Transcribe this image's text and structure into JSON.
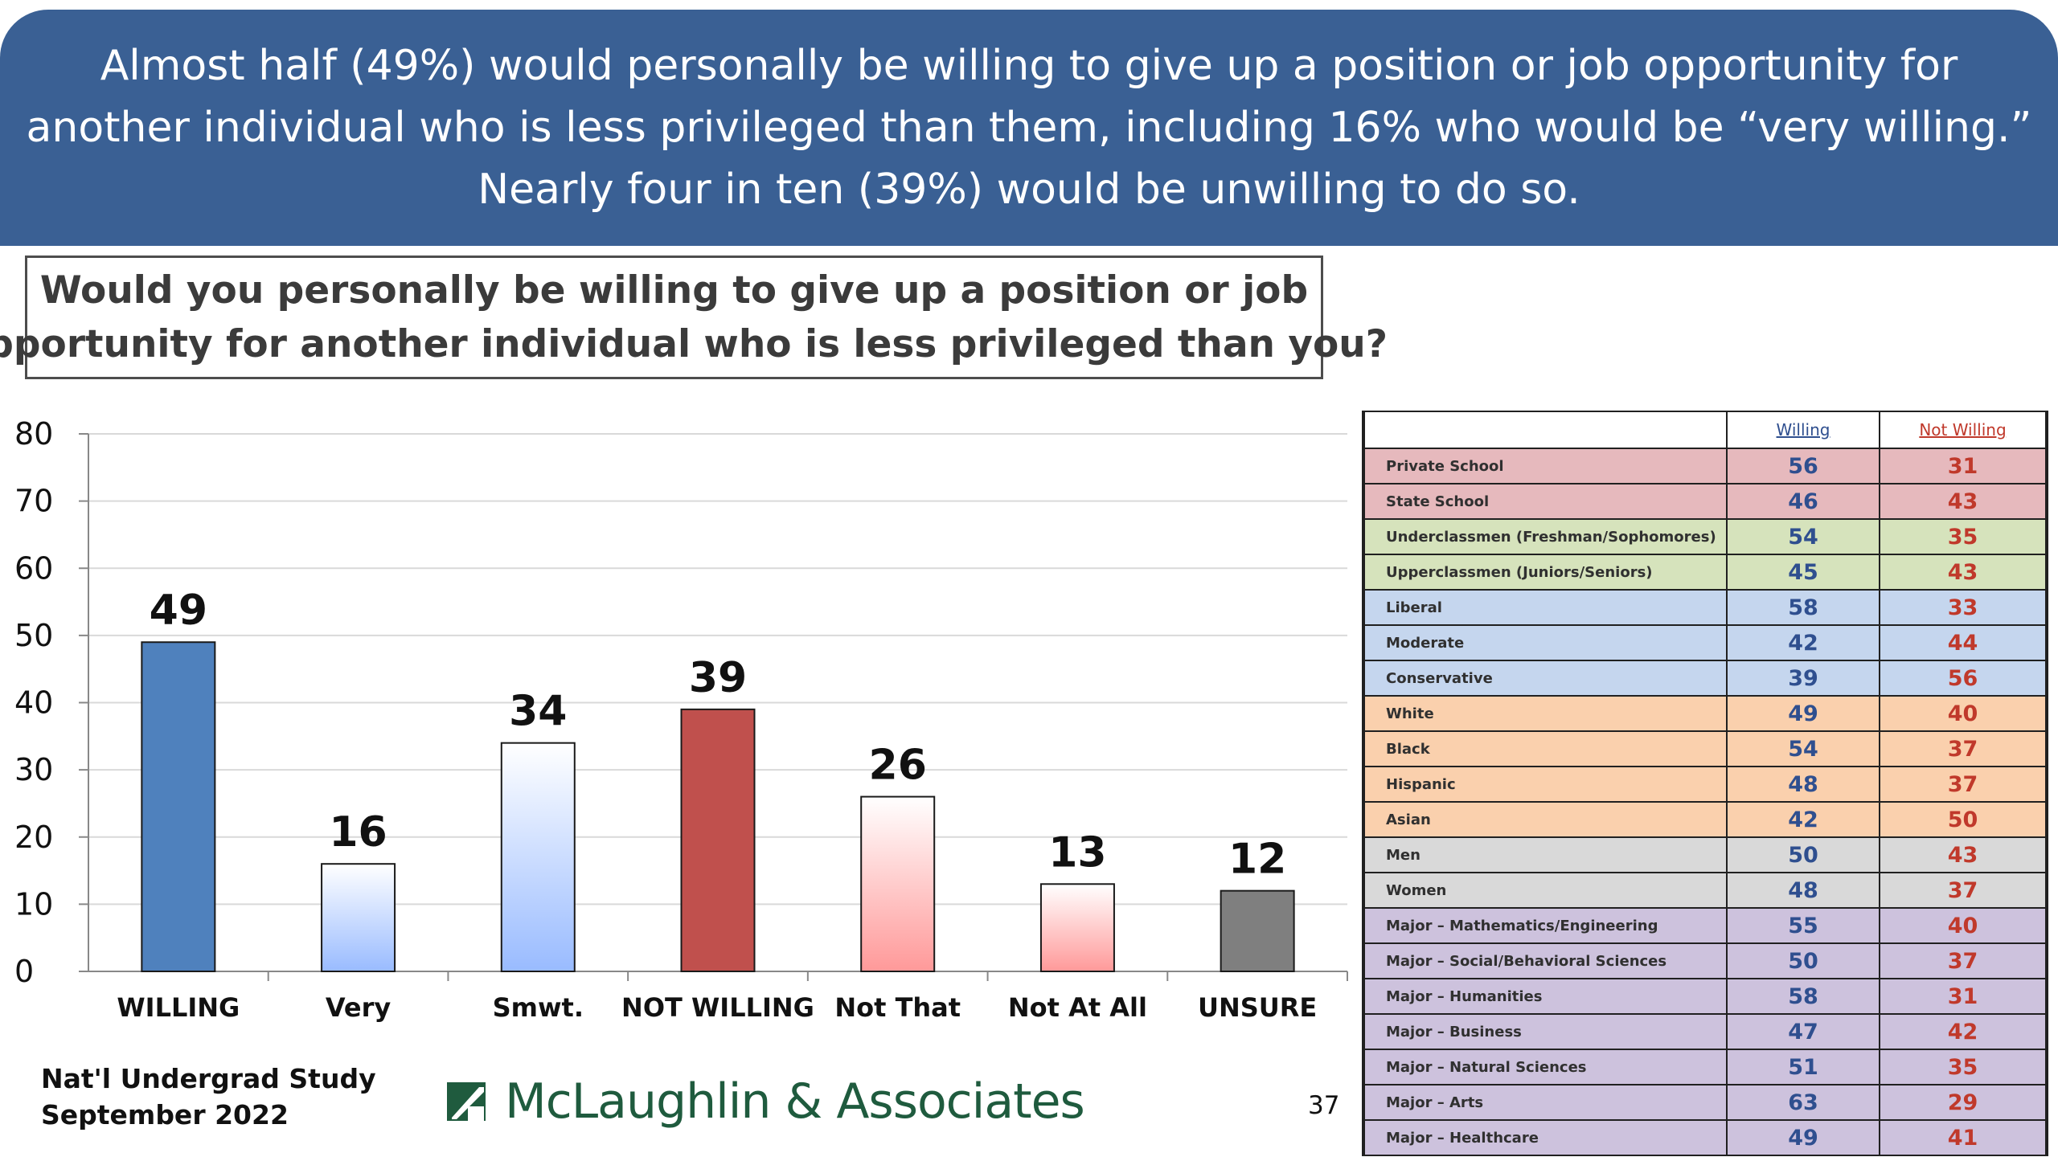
{
  "header": {
    "lines": [
      "Almost half (49%) would personally be willing to give up a position or job opportunity for",
      "another individual who is less privileged than them, including 16% who would be “very willing.”",
      "Nearly four in ten (39%) would be unwilling to do so."
    ]
  },
  "question": {
    "lines": [
      "Would you personally be willing to give up a position or job",
      "opportunity for another individual who is less privileged than you?"
    ]
  },
  "chart_data": {
    "type": "bar",
    "title": "",
    "xlabel": "",
    "ylabel": "",
    "categories": [
      "WILLING",
      "Very",
      "Smwt.",
      "NOT WILLING",
      "Not That",
      "Not At All",
      "UNSURE"
    ],
    "values": [
      49,
      16,
      34,
      39,
      26,
      13,
      12
    ],
    "data_labels": [
      "49",
      "16",
      "34",
      "39",
      "26",
      "13",
      "12"
    ],
    "ylim": [
      0,
      80
    ],
    "yticks": [
      0,
      10,
      20,
      30,
      40,
      50,
      60,
      70,
      80
    ],
    "grid": true,
    "bar_colors": [
      "#4f81bd",
      "gradient:#ffffff-#99bbff",
      "gradient:#ffffff-#99bbff",
      "#c0504d",
      "gradient:#ffffff-#ff9999",
      "gradient:#ffffff-#ff9999",
      "#7f7f7f"
    ]
  },
  "table": {
    "headers": [
      "",
      "Willing",
      "Not Willing"
    ],
    "header_colors": {
      "willing": "#2f4f8f",
      "not_willing": "#c0392b"
    },
    "rows": [
      {
        "label": "Private School",
        "willing": "56",
        "not_willing": "31",
        "bg": "#e6b9bd"
      },
      {
        "label": "State School",
        "willing": "46",
        "not_willing": "43",
        "bg": "#e6b9bd"
      },
      {
        "label": "Underclassmen (Freshman/Sophomores)",
        "willing": "54",
        "not_willing": "35",
        "bg": "#d6e3bc"
      },
      {
        "label": "Upperclassmen (Juniors/Seniors)",
        "willing": "45",
        "not_willing": "43",
        "bg": "#d6e3bc"
      },
      {
        "label": "Liberal",
        "willing": "58",
        "not_willing": "33",
        "bg": "#c5d6ee"
      },
      {
        "label": "Moderate",
        "willing": "42",
        "not_willing": "44",
        "bg": "#c5d6ee"
      },
      {
        "label": "Conservative",
        "willing": "39",
        "not_willing": "56",
        "bg": "#c5d6ee"
      },
      {
        "label": "White",
        "willing": "49",
        "not_willing": "40",
        "bg": "#fad0ad"
      },
      {
        "label": "Black",
        "willing": "54",
        "not_willing": "37",
        "bg": "#fad0ad"
      },
      {
        "label": "Hispanic",
        "willing": "48",
        "not_willing": "37",
        "bg": "#fad0ad"
      },
      {
        "label": "Asian",
        "willing": "42",
        "not_willing": "50",
        "bg": "#fad0ad"
      },
      {
        "label": "Men",
        "willing": "50",
        "not_willing": "43",
        "bg": "#d9d9d9"
      },
      {
        "label": "Women",
        "willing": "48",
        "not_willing": "37",
        "bg": "#d9d9d9"
      },
      {
        "label": "Major – Mathematics/Engineering",
        "willing": "55",
        "not_willing": "40",
        "bg": "#cdc2dd"
      },
      {
        "label": "Major – Social/Behavioral Sciences",
        "willing": "50",
        "not_willing": "37",
        "bg": "#cdc2dd"
      },
      {
        "label": "Major – Humanities",
        "willing": "58",
        "not_willing": "31",
        "bg": "#cdc2dd"
      },
      {
        "label": "Major – Business",
        "willing": "47",
        "not_willing": "42",
        "bg": "#cdc2dd"
      },
      {
        "label": "Major – Natural Sciences",
        "willing": "51",
        "not_willing": "35",
        "bg": "#cdc2dd"
      },
      {
        "label": "Major – Arts",
        "willing": "63",
        "not_willing": "29",
        "bg": "#cdc2dd"
      },
      {
        "label": "Major – Healthcare",
        "willing": "49",
        "not_willing": "41",
        "bg": "#cdc2dd"
      }
    ]
  },
  "footer": {
    "study_line1": "Nat'l Undergrad Study",
    "study_line2": "September 2022",
    "logo_text": "McLaughlin & Associates",
    "logo_color": "#1f5b3e",
    "page_number": "37"
  }
}
